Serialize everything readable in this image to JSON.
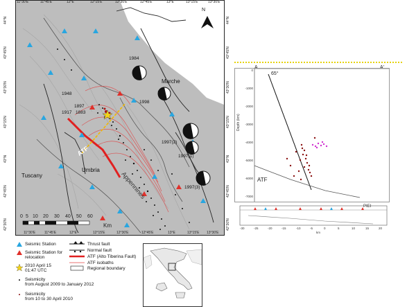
{
  "map": {
    "top_ticks": [
      "11°30'E",
      "11°45'E",
      "12°E",
      "12°15'E",
      "12°30'E",
      "12°45'E",
      "13°E",
      "13°15'E",
      "13°30'E"
    ],
    "bottom_ticks": [
      "11°30'E",
      "11°45'E",
      "12°E",
      "12°15'E",
      "12°30'E",
      "12°45'E",
      "13°E",
      "13°15'E",
      "13°30'E"
    ],
    "left_ticks": [
      "44°N",
      "43°45'N",
      "43°30'N",
      "43°15'N",
      "43°N",
      "42°45'N",
      "42°30'N"
    ],
    "right_ticks": [
      "44°N",
      "43°45'N",
      "43°30'N",
      "43°15'N",
      "43°N",
      "42°45'N",
      "42°30'N"
    ],
    "north": "N",
    "regions": {
      "marche": "Marche",
      "tuscany": "Tuscany",
      "umbria": "Umbria",
      "appennines": "Appennines",
      "atf": "ATF"
    },
    "years": {
      "y1984": "1984",
      "y1948": "1948",
      "y1917": "1917",
      "y1897": "1897",
      "y1883": "1883",
      "y1998": "1998",
      "y1997_2": "1997(2)",
      "y1997_1": "1997(1)",
      "y1997_3": "1997(3)"
    },
    "scale": {
      "numbers": [
        "0",
        "5",
        "10",
        "20",
        "30",
        "40",
        "50",
        "60"
      ],
      "unit": "Km"
    }
  },
  "legend": {
    "seismic_station": "Seismic Station",
    "relocation_station": "Seismic Station for relocation",
    "event_date": "2010 April 15",
    "event_time": "01:47 UTC",
    "seis_2009_l1": "Seismicity",
    "seis_2009_l2": "from August 2009 to January 2012",
    "seis_2010_l1": "Seismicity",
    "seis_2010_l2": "from 10 to 30 April 2010",
    "thrust": "Thrust fault",
    "normal": "Normal fault",
    "atf": "ATF (Alto Tiberina Fault)",
    "isobaths": "ATF isobaths",
    "regional": "Regional boundary"
  },
  "section": {
    "a_left": "A",
    "a_right": "A'",
    "angle": "65°",
    "atf": "ATF",
    "ylabel": "Depth (km)",
    "depth_ticks": [
      "0",
      "-1000",
      "-2000",
      "-3000",
      "-4000",
      "-5000",
      "-6000",
      "-7000"
    ],
    "dist_ticks": [
      "-30",
      "-25",
      "-20",
      "-15",
      "-10",
      "-5",
      "0",
      "5",
      "10",
      "15",
      "20"
    ],
    "dist_unit": "km",
    "small_label": "PIEI"
  },
  "colors": {
    "station": "#29a6e0",
    "relocation": "#e0302a",
    "star": "#f2d21a",
    "isobath": "#e04040",
    "dotted_line": "#e6d200",
    "quake": "#8a1010",
    "magenta": "#d030d0"
  }
}
